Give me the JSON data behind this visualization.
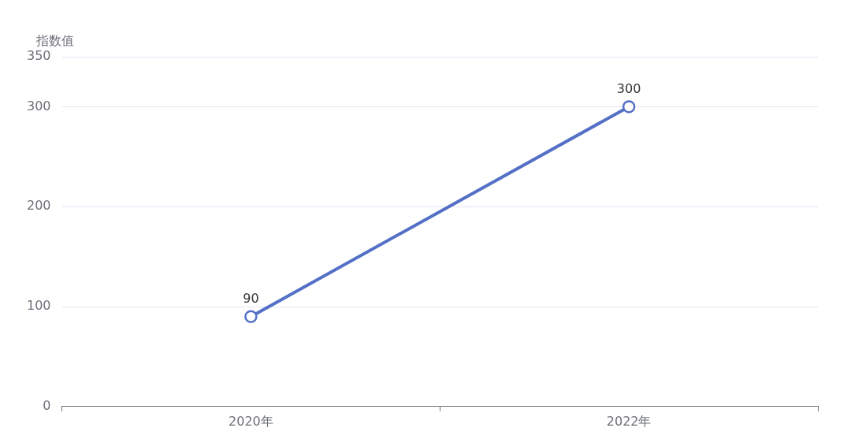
{
  "chart_data": {
    "type": "line",
    "ylabel": "指数值",
    "categories": [
      "2020年",
      "2022年"
    ],
    "series": [
      {
        "color": "#5470c6",
        "values": [
          90,
          300
        ]
      }
    ],
    "ylim": [
      0,
      350
    ],
    "yticks": [
      0,
      100,
      200,
      300,
      350
    ],
    "grid": "y",
    "marker": "circle",
    "data_labels": true
  }
}
